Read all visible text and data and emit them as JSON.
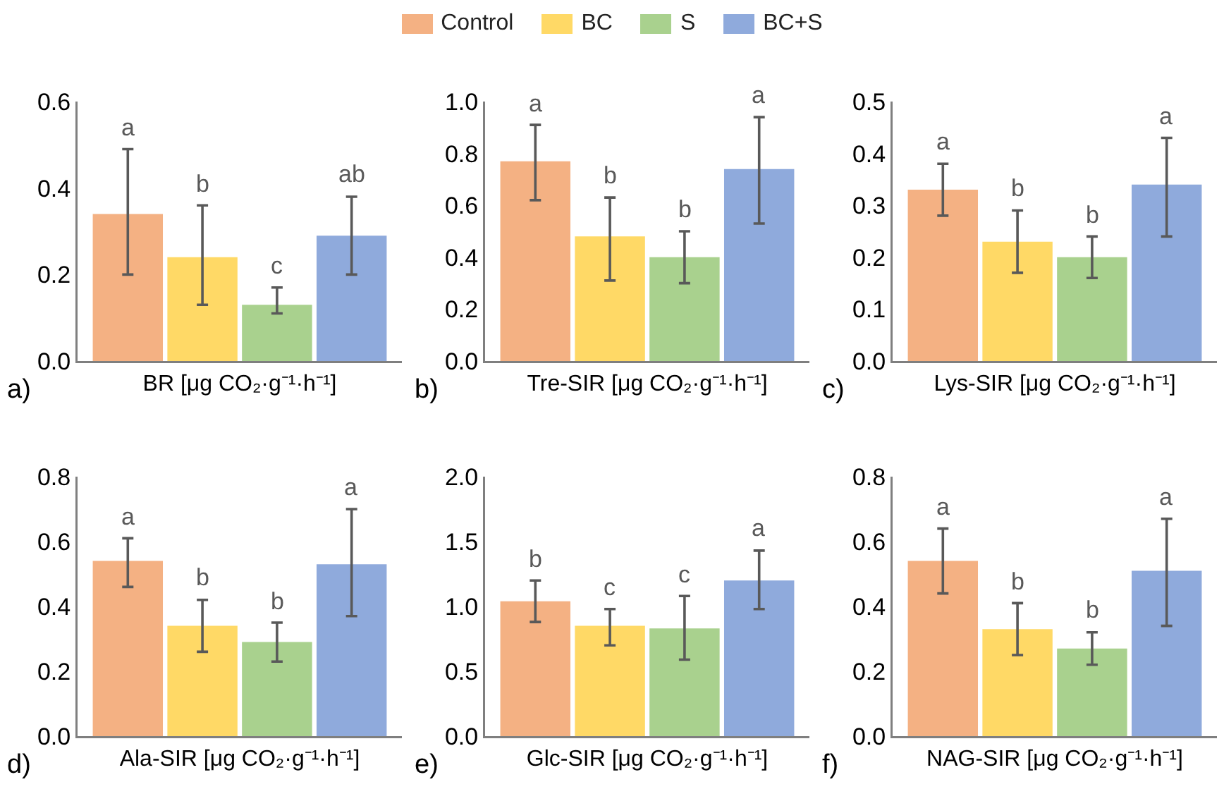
{
  "chart_data": [
    {
      "type": "bar",
      "title": "a)",
      "xlabel": "BR [μg CO₂·g⁻¹·h⁻¹]",
      "categories": [
        null
      ],
      "legend": "top",
      "ylim": [
        0,
        0.6
      ],
      "yticks": [
        {
          "value": 0,
          "label": "0.0"
        },
        {
          "value": 0.2,
          "label": "0.2"
        },
        {
          "value": 0.4,
          "label": "0.4"
        },
        {
          "value": 0.6,
          "label": "0.6"
        }
      ],
      "series": [
        {
          "name": "Control",
          "color": "#f4b183",
          "values": [
            0.34
          ],
          "errors": [
            [
              0.2,
              0.49
            ]
          ],
          "value_labels": [
            "a"
          ]
        },
        {
          "name": "BC",
          "color": "#ffd966",
          "values": [
            0.24
          ],
          "errors": [
            [
              0.13,
              0.36
            ]
          ],
          "value_labels": [
            "b"
          ]
        },
        {
          "name": "S",
          "color": "#a9d18e",
          "values": [
            0.13
          ],
          "errors": [
            [
              0.11,
              0.17
            ]
          ],
          "value_labels": [
            "c"
          ]
        },
        {
          "name": "BC+S",
          "color": "#8faadc",
          "values": [
            0.29
          ],
          "errors": [
            [
              0.2,
              0.38
            ]
          ],
          "value_labels": [
            "ab"
          ]
        }
      ]
    },
    {
      "type": "bar",
      "title": "b)",
      "xlabel": "Tre-SIR [μg CO₂·g⁻¹·h⁻¹]",
      "categories": [
        null
      ],
      "ylim": [
        0,
        1.0
      ],
      "yticks": [
        {
          "value": 0,
          "label": "0.0"
        },
        {
          "value": 0.2,
          "label": "0.2"
        },
        {
          "value": 0.4,
          "label": "0.4"
        },
        {
          "value": 0.6,
          "label": "0.6"
        },
        {
          "value": 0.8,
          "label": "0.8"
        },
        {
          "value": 1.0,
          "label": "1.0"
        }
      ],
      "series": [
        {
          "color": "#f4b183",
          "values": [
            0.77
          ],
          "errors": [
            [
              0.62,
              0.91
            ]
          ],
          "value_labels": [
            "a"
          ]
        },
        {
          "color": "#ffd966",
          "values": [
            0.48
          ],
          "errors": [
            [
              0.31,
              0.63
            ]
          ],
          "value_labels": [
            "b"
          ]
        },
        {
          "color": "#a9d18e",
          "values": [
            0.4
          ],
          "errors": [
            [
              0.3,
              0.5
            ]
          ],
          "value_labels": [
            "b"
          ]
        },
        {
          "color": "#8faadc",
          "values": [
            0.74
          ],
          "errors": [
            [
              0.53,
              0.94
            ]
          ],
          "value_labels": [
            "a"
          ]
        }
      ]
    },
    {
      "type": "bar",
      "title": "c)",
      "xlabel": "Lys-SIR [μg CO₂·g⁻¹·h⁻¹]",
      "categories": [
        null
      ],
      "ylim": [
        0,
        0.5
      ],
      "yticks": [
        {
          "value": 0,
          "label": "0.0"
        },
        {
          "value": 0.1,
          "label": "0.1"
        },
        {
          "value": 0.2,
          "label": "0.2"
        },
        {
          "value": 0.3,
          "label": "0.3"
        },
        {
          "value": 0.4,
          "label": "0.4"
        },
        {
          "value": 0.5,
          "label": "0.5"
        }
      ],
      "series": [
        {
          "color": "#f4b183",
          "values": [
            0.33
          ],
          "errors": [
            [
              0.28,
              0.38
            ]
          ],
          "value_labels": [
            "a"
          ]
        },
        {
          "color": "#ffd966",
          "values": [
            0.23
          ],
          "errors": [
            [
              0.17,
              0.29
            ]
          ],
          "value_labels": [
            "b"
          ]
        },
        {
          "color": "#a9d18e",
          "values": [
            0.2
          ],
          "errors": [
            [
              0.16,
              0.24
            ]
          ],
          "value_labels": [
            "b"
          ]
        },
        {
          "color": "#8faadc",
          "values": [
            0.34
          ],
          "errors": [
            [
              0.24,
              0.43
            ]
          ],
          "value_labels": [
            "a"
          ]
        }
      ]
    },
    {
      "type": "bar",
      "title": "d)",
      "xlabel": "Ala-SIR [μg CO₂·g⁻¹·h⁻¹]",
      "categories": [
        null
      ],
      "ylim": [
        0,
        0.8
      ],
      "yticks": [
        {
          "value": 0,
          "label": "0.0"
        },
        {
          "value": 0.2,
          "label": "0.2"
        },
        {
          "value": 0.4,
          "label": "0.4"
        },
        {
          "value": 0.6,
          "label": "0.6"
        },
        {
          "value": 0.8,
          "label": "0.8"
        }
      ],
      "series": [
        {
          "color": "#f4b183",
          "values": [
            0.54
          ],
          "errors": [
            [
              0.46,
              0.61
            ]
          ],
          "value_labels": [
            "a"
          ]
        },
        {
          "color": "#ffd966",
          "values": [
            0.34
          ],
          "errors": [
            [
              0.26,
              0.42
            ]
          ],
          "value_labels": [
            "b"
          ]
        },
        {
          "color": "#a9d18e",
          "values": [
            0.29
          ],
          "errors": [
            [
              0.23,
              0.35
            ]
          ],
          "value_labels": [
            "b"
          ]
        },
        {
          "color": "#8faadc",
          "values": [
            0.53
          ],
          "errors": [
            [
              0.37,
              0.7
            ]
          ],
          "value_labels": [
            "a"
          ]
        }
      ]
    },
    {
      "type": "bar",
      "title": "e)",
      "xlabel": "Glc-SIR [μg CO₂·g⁻¹·h⁻¹]",
      "categories": [
        null
      ],
      "ylim": [
        0,
        2.0
      ],
      "yticks": [
        {
          "value": 0,
          "label": "0.0"
        },
        {
          "value": 0.5,
          "label": "0.5"
        },
        {
          "value": 1.0,
          "label": "1.0"
        },
        {
          "value": 1.5,
          "label": "1.5"
        },
        {
          "value": 2.0,
          "label": "2.0"
        }
      ],
      "series": [
        {
          "color": "#f4b183",
          "values": [
            1.04
          ],
          "errors": [
            [
              0.88,
              1.2
            ]
          ],
          "value_labels": [
            "b"
          ]
        },
        {
          "color": "#ffd966",
          "values": [
            0.85
          ],
          "errors": [
            [
              0.7,
              0.98
            ]
          ],
          "value_labels": [
            "c"
          ]
        },
        {
          "color": "#a9d18e",
          "values": [
            0.83
          ],
          "errors": [
            [
              0.59,
              1.08
            ]
          ],
          "value_labels": [
            "c"
          ]
        },
        {
          "color": "#8faadc",
          "values": [
            1.2
          ],
          "errors": [
            [
              0.98,
              1.43
            ]
          ],
          "value_labels": [
            "a"
          ]
        }
      ]
    },
    {
      "type": "bar",
      "title": "f)",
      "xlabel": "NAG-SIR [μg CO₂·g⁻¹·h⁻¹]",
      "categories": [
        null
      ],
      "ylim": [
        0,
        0.8
      ],
      "yticks": [
        {
          "value": 0,
          "label": "0.0"
        },
        {
          "value": 0.2,
          "label": "0.2"
        },
        {
          "value": 0.4,
          "label": "0.4"
        },
        {
          "value": 0.6,
          "label": "0.6"
        },
        {
          "value": 0.8,
          "label": "0.8"
        }
      ],
      "series": [
        {
          "color": "#f4b183",
          "values": [
            0.54
          ],
          "errors": [
            [
              0.44,
              0.64
            ]
          ],
          "value_labels": [
            "a"
          ]
        },
        {
          "color": "#ffd966",
          "values": [
            0.33
          ],
          "errors": [
            [
              0.25,
              0.41
            ]
          ],
          "value_labels": [
            "b"
          ]
        },
        {
          "color": "#a9d18e",
          "values": [
            0.27
          ],
          "errors": [
            [
              0.22,
              0.32
            ]
          ],
          "value_labels": [
            "b"
          ]
        },
        {
          "color": "#8faadc",
          "values": [
            0.51
          ],
          "errors": [
            [
              0.34,
              0.67
            ]
          ],
          "value_labels": [
            "a"
          ]
        }
      ]
    }
  ]
}
